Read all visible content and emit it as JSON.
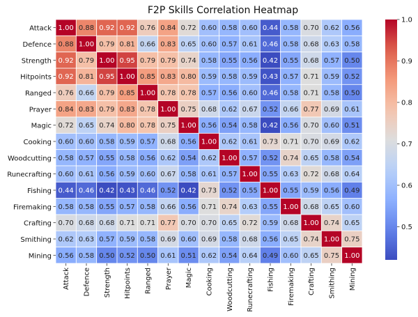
{
  "chart_data": {
    "type": "heatmap",
    "title": "F2P Skills Correlation Heatmap",
    "colormap": "coolwarm",
    "value_range": [
      0.42,
      1.0
    ],
    "colorbar_ticks": [
      0.5,
      0.6,
      0.7,
      0.8,
      0.9,
      1.0
    ],
    "colorbar_labels": [
      "0.5",
      "0.6",
      "0.7",
      "0.8",
      "0.9",
      "1.0"
    ],
    "grid_lines": "white",
    "annotation_format": "2 decimals",
    "rows": [
      "Attack",
      "Defence",
      "Strength",
      "Hitpoints",
      "Ranged",
      "Prayer",
      "Magic",
      "Cooking",
      "Woodcutting",
      "Runecrafting",
      "Fishing",
      "Firemaking",
      "Crafting",
      "Smithing",
      "Mining"
    ],
    "cols": [
      "Attack",
      "Defence",
      "Strength",
      "Hitpoints",
      "Ranged",
      "Prayer",
      "Magic",
      "Cooking",
      "Woodcutting",
      "Runecrafting",
      "Fishing",
      "Firemaking",
      "Crafting",
      "Smithing",
      "Mining"
    ],
    "values": [
      [
        1.0,
        0.88,
        0.92,
        0.92,
        0.76,
        0.84,
        0.72,
        0.6,
        0.58,
        0.6,
        0.44,
        0.58,
        0.7,
        0.62,
        0.56
      ],
      [
        0.88,
        1.0,
        0.79,
        0.81,
        0.66,
        0.83,
        0.65,
        0.6,
        0.57,
        0.61,
        0.46,
        0.58,
        0.68,
        0.63,
        0.58
      ],
      [
        0.92,
        0.79,
        1.0,
        0.95,
        0.79,
        0.79,
        0.74,
        0.58,
        0.55,
        0.56,
        0.42,
        0.55,
        0.68,
        0.57,
        0.5
      ],
      [
        0.92,
        0.81,
        0.95,
        1.0,
        0.85,
        0.83,
        0.8,
        0.59,
        0.58,
        0.59,
        0.43,
        0.57,
        0.71,
        0.59,
        0.52
      ],
      [
        0.76,
        0.66,
        0.79,
        0.85,
        1.0,
        0.78,
        0.78,
        0.57,
        0.56,
        0.6,
        0.46,
        0.58,
        0.71,
        0.58,
        0.5
      ],
      [
        0.84,
        0.83,
        0.79,
        0.83,
        0.78,
        1.0,
        0.75,
        0.68,
        0.62,
        0.67,
        0.52,
        0.66,
        0.77,
        0.69,
        0.61
      ],
      [
        0.72,
        0.65,
        0.74,
        0.8,
        0.78,
        0.75,
        1.0,
        0.56,
        0.54,
        0.58,
        0.42,
        0.56,
        0.7,
        0.6,
        0.51
      ],
      [
        0.6,
        0.6,
        0.58,
        0.59,
        0.57,
        0.68,
        0.56,
        1.0,
        0.62,
        0.61,
        0.73,
        0.71,
        0.7,
        0.69,
        0.62
      ],
      [
        0.58,
        0.57,
        0.55,
        0.58,
        0.56,
        0.62,
        0.54,
        0.62,
        1.0,
        0.57,
        0.52,
        0.74,
        0.65,
        0.58,
        0.54
      ],
      [
        0.6,
        0.61,
        0.56,
        0.59,
        0.6,
        0.67,
        0.58,
        0.61,
        0.57,
        1.0,
        0.55,
        0.63,
        0.72,
        0.68,
        0.64
      ],
      [
        0.44,
        0.46,
        0.42,
        0.43,
        0.46,
        0.52,
        0.42,
        0.73,
        0.52,
        0.55,
        1.0,
        0.55,
        0.59,
        0.56,
        0.49
      ],
      [
        0.58,
        0.58,
        0.55,
        0.57,
        0.58,
        0.66,
        0.56,
        0.71,
        0.74,
        0.63,
        0.55,
        1.0,
        0.68,
        0.65,
        0.6
      ],
      [
        0.7,
        0.68,
        0.68,
        0.71,
        0.71,
        0.77,
        0.7,
        0.7,
        0.65,
        0.72,
        0.59,
        0.68,
        1.0,
        0.74,
        0.65
      ],
      [
        0.62,
        0.63,
        0.57,
        0.59,
        0.58,
        0.69,
        0.6,
        0.69,
        0.58,
        0.68,
        0.56,
        0.65,
        0.74,
        1.0,
        0.75
      ],
      [
        0.56,
        0.58,
        0.5,
        0.52,
        0.5,
        0.61,
        0.51,
        0.62,
        0.54,
        0.64,
        0.49,
        0.6,
        0.65,
        0.75,
        1.0
      ]
    ]
  }
}
